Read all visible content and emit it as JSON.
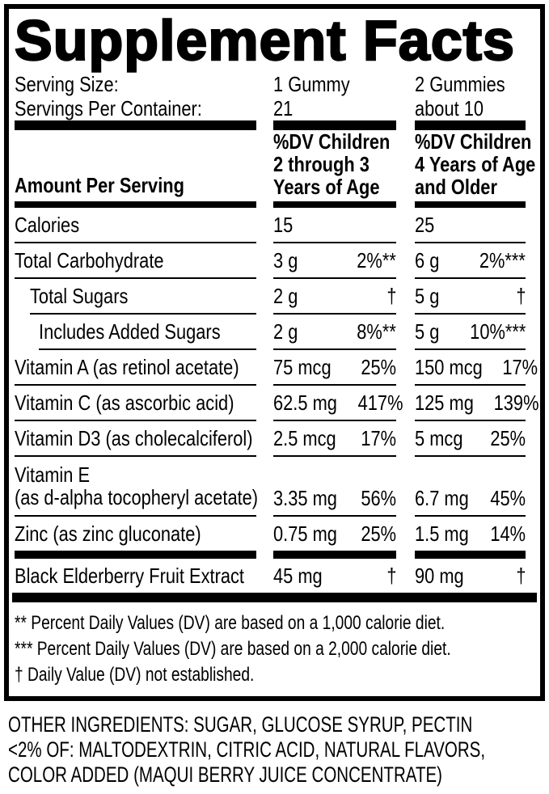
{
  "label": {
    "title": "Supplement Facts",
    "serving": {
      "size_label": "Serving Size:",
      "container_label": "Servings Per Container:",
      "col1": {
        "size": "1 Gummy",
        "count": "21"
      },
      "col2": {
        "size": "2 Gummies",
        "count": "about 10"
      }
    },
    "header": {
      "amount": "Amount Per Serving",
      "col1": [
        "%DV Children",
        "2 through 3",
        "Years of Age"
      ],
      "col2": [
        "%DV Children",
        "4 Years of Age",
        "and Older"
      ]
    },
    "rows": [
      {
        "name": "Calories",
        "c1": {
          "amt": "15",
          "pct": ""
        },
        "c2": {
          "amt": "25",
          "pct": ""
        }
      },
      {
        "name": "Total Carbohydrate",
        "c1": {
          "amt": "3 g",
          "pct": "2%**"
        },
        "c2": {
          "amt": "6 g",
          "pct": "2%***"
        }
      },
      {
        "name": "Total Sugars",
        "c1": {
          "amt": "2 g",
          "pct": "†"
        },
        "c2": {
          "amt": "5 g",
          "pct": "†"
        }
      },
      {
        "name": "Includes Added Sugars",
        "c1": {
          "amt": "2 g",
          "pct": "8%**"
        },
        "c2": {
          "amt": "5 g",
          "pct": "10%***"
        }
      },
      {
        "name": "Vitamin A (as retinol acetate)",
        "c1": {
          "amt": "75 mcg",
          "pct": "25%"
        },
        "c2": {
          "amt": "150 mcg",
          "pct": "17%"
        }
      },
      {
        "name": "Vitamin C (as ascorbic acid)",
        "c1": {
          "amt": "62.5 mg",
          "pct": "417%"
        },
        "c2": {
          "amt": "125 mg",
          "pct": "139%"
        }
      },
      {
        "name": "Vitamin D3 (as cholecalciferol)",
        "c1": {
          "amt": "2.5 mcg",
          "pct": "17%"
        },
        "c2": {
          "amt": "5 mcg",
          "pct": "25%"
        }
      },
      {
        "name": "Vitamin E",
        "name2": "(as d-alpha tocopheryl acetate)",
        "c1": {
          "amt": "3.35 mg",
          "pct": "56%"
        },
        "c2": {
          "amt": "6.7 mg",
          "pct": "45%"
        }
      },
      {
        "name": "Zinc (as zinc gluconate)",
        "c1": {
          "amt": "0.75 mg",
          "pct": "25%"
        },
        "c2": {
          "amt": "1.5 mg",
          "pct": "14%"
        }
      },
      {
        "name": "Black Elderberry Fruit Extract",
        "c1": {
          "amt": "45 mg",
          "pct": "†"
        },
        "c2": {
          "amt": "90 mg",
          "pct": "†"
        }
      }
    ],
    "footnotes": [
      "** Percent Daily Values (DV) are based on a 1,000 calorie diet.",
      "*** Percent Daily Values (DV) are based on a 2,000 calorie diet.",
      "† Daily Value (DV) not established."
    ]
  },
  "other_ingredients": {
    "lines": [
      "OTHER INGREDIENTS: SUGAR, GLUCOSE SYRUP, PECTIN",
      "<2% OF: MALTODEXTRIN, CITRIC ACID, NATURAL FLAVORS,",
      "COLOR ADDED (MAQUI BERRY JUICE CONCENTRATE)"
    ]
  },
  "colors": {
    "ink": "#000000",
    "background": "#ffffff"
  }
}
